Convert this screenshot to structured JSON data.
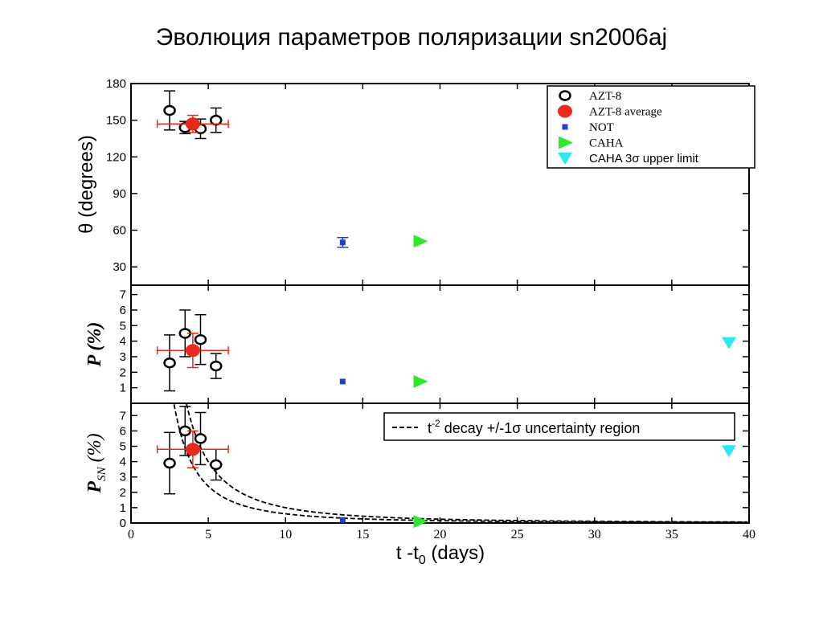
{
  "slide_title": "Эволюция параметров поляризации sn2006aj",
  "chart_data": [
    {
      "type": "scatter",
      "panel": "theta",
      "ylabel": "θ (degrees)",
      "ylim": [
        15,
        180
      ],
      "yticks": [
        30,
        60,
        90,
        120,
        150,
        180
      ],
      "xlim": [
        0,
        40
      ],
      "series": [
        {
          "name": "AZT-8",
          "marker": "open-circle",
          "color": "#000000",
          "points": [
            {
              "x": 2.5,
              "y": 158,
              "yerr": 16
            },
            {
              "x": 3.5,
              "y": 144,
              "yerr": 5
            },
            {
              "x": 4.5,
              "y": 143,
              "yerr": 8
            },
            {
              "x": 5.5,
              "y": 150,
              "yerr": 10
            }
          ]
        },
        {
          "name": "AZT-8 average",
          "marker": "filled-circle",
          "color": "#e8291c",
          "points": [
            {
              "x": 4.0,
              "y": 147,
              "xerr": 2.3,
              "yerr": 7
            }
          ]
        },
        {
          "name": "NOT",
          "marker": "filled-square",
          "color": "#1f3fd1",
          "points": [
            {
              "x": 13.7,
              "y": 50,
              "yerr": 4
            }
          ]
        },
        {
          "name": "CAHA",
          "marker": "triangle-right",
          "color": "#2ee82e",
          "points": [
            {
              "x": 18.7,
              "y": 51
            }
          ]
        }
      ],
      "legend": {
        "placement": "top-right",
        "entries": [
          {
            "label": "AZT-8",
            "marker": "open-circle",
            "color": "#000000"
          },
          {
            "label": "AZT-8 average",
            "marker": "filled-circle",
            "color": "#e8291c"
          },
          {
            "label": "NOT",
            "marker": "filled-square",
            "color": "#1f3fd1"
          },
          {
            "label": "CAHA",
            "marker": "triangle-right",
            "color": "#2ee82e"
          },
          {
            "label": "CAHA 3σ upper limit",
            "marker": "triangle-down",
            "color": "#2ee8f0"
          }
        ]
      }
    },
    {
      "type": "scatter",
      "panel": "p",
      "ylabel": "P (%)",
      "ylim": [
        0,
        7.6
      ],
      "yticks": [
        1,
        2,
        3,
        4,
        5,
        6,
        7
      ],
      "xlim": [
        0,
        40
      ],
      "series": [
        {
          "name": "AZT-8",
          "marker": "open-circle",
          "color": "#000000",
          "points": [
            {
              "x": 2.5,
              "y": 2.6,
              "yerr": 1.8
            },
            {
              "x": 3.5,
              "y": 4.5,
              "yerr": 1.5
            },
            {
              "x": 4.5,
              "y": 4.1,
              "yerr": 1.6
            },
            {
              "x": 5.5,
              "y": 2.4,
              "yerr": 0.8
            }
          ]
        },
        {
          "name": "AZT-8 average",
          "marker": "filled-circle",
          "color": "#e8291c",
          "points": [
            {
              "x": 4.0,
              "y": 3.4,
              "xerr": 2.3,
              "yerr": 1.1
            }
          ]
        },
        {
          "name": "NOT",
          "marker": "filled-square",
          "color": "#1f3fd1",
          "points": [
            {
              "x": 13.7,
              "y": 1.4
            }
          ]
        },
        {
          "name": "CAHA",
          "marker": "triangle-right",
          "color": "#2ee82e",
          "points": [
            {
              "x": 18.7,
              "y": 1.4
            }
          ]
        },
        {
          "name": "CAHA 3σ upper limit",
          "marker": "triangle-down",
          "color": "#2ee8f0",
          "points": [
            {
              "x": 38.7,
              "y": 3.9
            }
          ]
        }
      ]
    },
    {
      "type": "scatter",
      "panel": "psn",
      "ylabel": "P_SN (%)",
      "ylim": [
        0,
        7.8
      ],
      "yticks": [
        0,
        1,
        2,
        3,
        4,
        5,
        6,
        7
      ],
      "xlim": [
        0,
        40
      ],
      "xticks": [
        0,
        5,
        10,
        15,
        20,
        25,
        30,
        35,
        40
      ],
      "xlabel": "t -t0 (days)",
      "series": [
        {
          "name": "AZT-8",
          "marker": "open-circle",
          "color": "#000000",
          "points": [
            {
              "x": 2.5,
              "y": 3.9,
              "yerr": 2.0
            },
            {
              "x": 3.5,
              "y": 6.0,
              "yerr": 1.6
            },
            {
              "x": 4.5,
              "y": 5.5,
              "yerr": 1.7
            },
            {
              "x": 5.5,
              "y": 3.8,
              "yerr": 1.0
            }
          ]
        },
        {
          "name": "AZT-8 average",
          "marker": "filled-circle",
          "color": "#e8291c",
          "points": [
            {
              "x": 4.0,
              "y": 4.8,
              "xerr": 2.3,
              "yerr": 1.2
            }
          ]
        },
        {
          "name": "NOT",
          "marker": "filled-square",
          "color": "#1f3fd1",
          "points": [
            {
              "x": 13.7,
              "y": 0.2
            }
          ]
        },
        {
          "name": "CAHA",
          "marker": "triangle-right",
          "color": "#2ee82e",
          "points": [
            {
              "x": 18.7,
              "y": 0.1
            }
          ]
        },
        {
          "name": "CAHA 3σ upper limit",
          "marker": "triangle-down",
          "color": "#2ee8f0",
          "points": [
            {
              "x": 38.7,
              "y": 4.7
            }
          ]
        }
      ],
      "decay_curves": [
        {
          "label": "t^-2 decay +/-1σ uncertainty region",
          "style": "dashed",
          "amplitude": 60
        },
        {
          "style": "dashed",
          "amplitude": 100
        }
      ],
      "legend": {
        "placement": "top-right",
        "entries": [
          {
            "label_main": "t",
            "label_sup": "-2",
            "label_rest": " decay +/-1σ uncertainty region",
            "style": "dashed"
          }
        ]
      }
    }
  ]
}
